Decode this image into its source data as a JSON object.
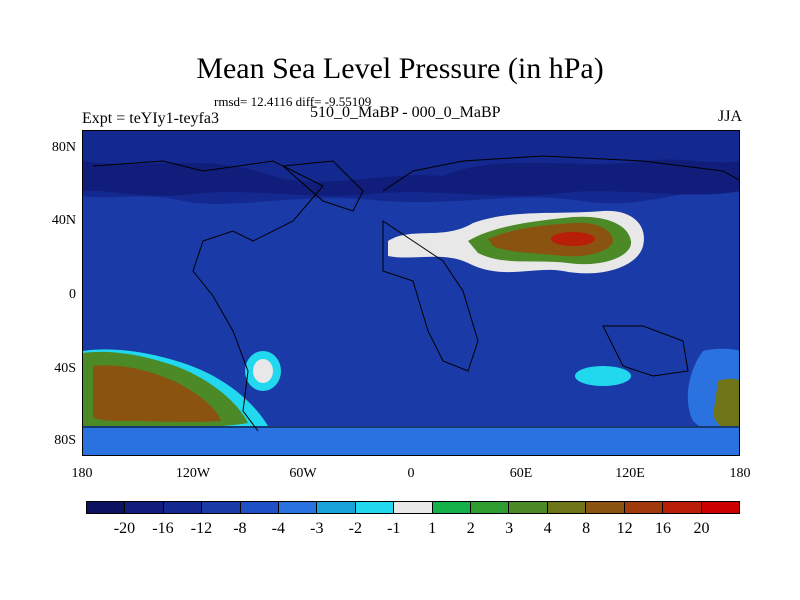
{
  "title": "Mean Sea Level Pressure (in hPa)",
  "stats": "rmsd= 12.4116 diff= -9.55109",
  "left_label": "Expt = teYIy1-teyfa3",
  "center_label": "510_0_MaBP - 000_0_MaBP",
  "right_label": "JJA",
  "y_ticks": [
    "80N",
    "40N",
    "0",
    "40S",
    "80S"
  ],
  "x_ticks": [
    "180",
    "120W",
    "60W",
    "0",
    "60E",
    "120E",
    "180"
  ],
  "colorbar": {
    "colors": [
      "#0c1160",
      "#111d7a",
      "#14298f",
      "#1a3aa8",
      "#1f50c5",
      "#2a72e0",
      "#1aa2db",
      "#22d8ee",
      "#e8e8e8",
      "#14b04a",
      "#2c9d2e",
      "#4b8a26",
      "#6e7418",
      "#8a5410",
      "#a13a0a",
      "#b81e08",
      "#cc0000"
    ],
    "labels": [
      "-20",
      "-16",
      "-12",
      "-8",
      "-4",
      "-3",
      "-2",
      "-1",
      "1",
      "2",
      "3",
      "4",
      "8",
      "12",
      "16",
      "20"
    ]
  }
}
